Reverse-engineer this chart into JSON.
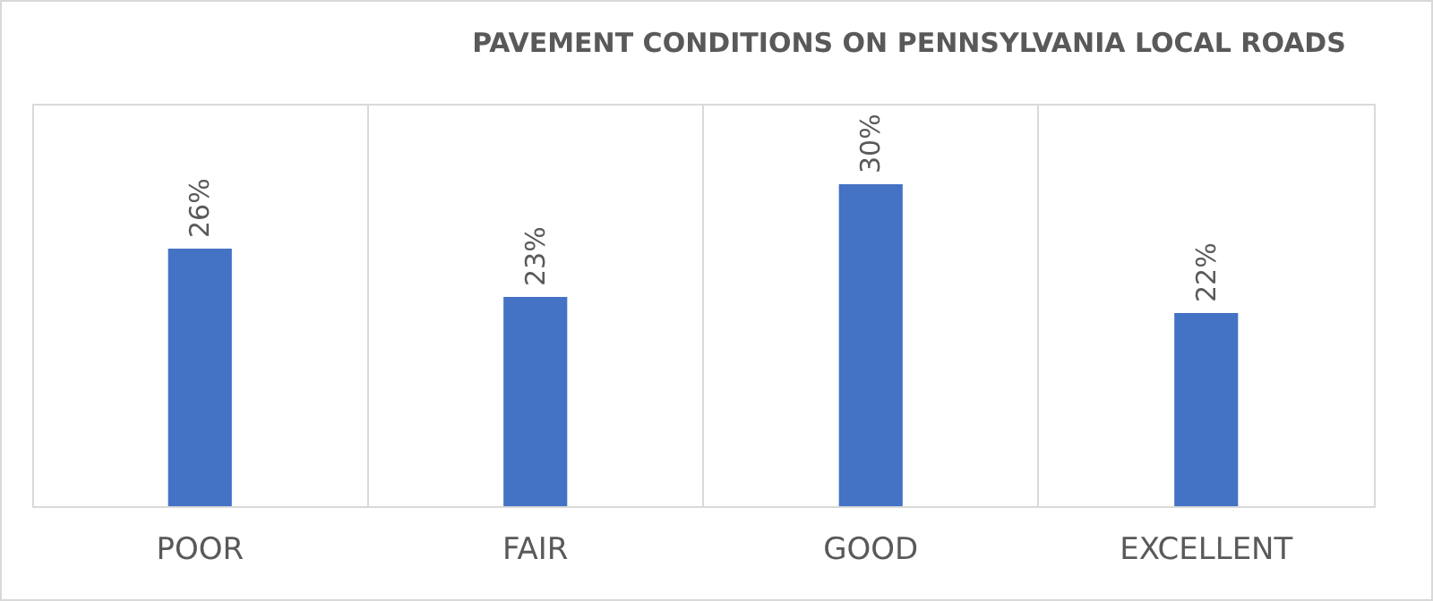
{
  "chart_data": {
    "type": "bar",
    "title": "PAVEMENT CONDITIONS ON PENNSYLVANIA LOCAL ROADS",
    "categories": [
      "POOR",
      "FAIR",
      "GOOD",
      "EXCELLENT"
    ],
    "values": [
      26,
      23,
      30,
      22
    ],
    "value_labels": [
      "26%",
      "23%",
      "30%",
      "22%"
    ],
    "color": "#4472c4",
    "ylim": [
      10,
      35
    ],
    "grid": "x",
    "tick_labels": "x"
  }
}
